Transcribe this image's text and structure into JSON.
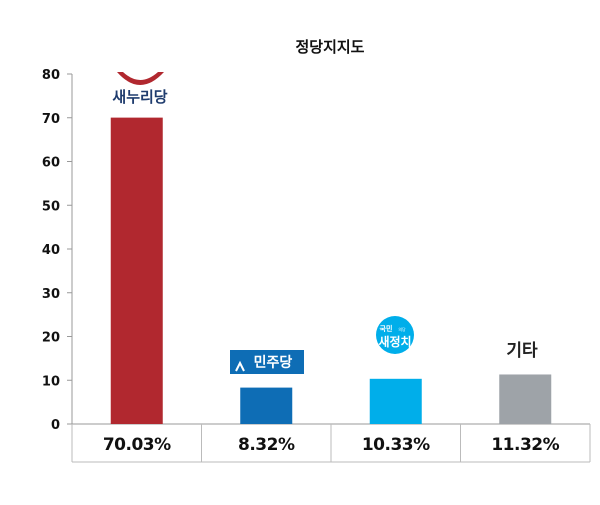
{
  "chart_data": {
    "type": "bar",
    "title": "정당지지도",
    "categories": [
      "새누리당",
      "민주당",
      "국민의당",
      "기타"
    ],
    "values": [
      70.03,
      8.32,
      10.33,
      11.32
    ],
    "value_labels": [
      "70.03%",
      "8.32%",
      "10.33%",
      "11.32%"
    ],
    "ylim": [
      0,
      80
    ],
    "yticks": [
      0,
      10,
      20,
      30,
      40,
      50,
      60,
      70,
      80
    ],
    "colors": [
      "#b1282f",
      "#0e6db5",
      "#00aeea",
      "#9ea3a8"
    ],
    "grid": false,
    "legend": "none"
  },
  "logos": {
    "saenuri": "새누리당",
    "minju": "민주당",
    "kookmin_small": "국민",
    "kookmin_tiny": "의당",
    "kookmin_main": "새정치",
    "other": "기타"
  },
  "icons": {
    "saenuri": "smile-arc-icon",
    "minju": "caret-up-icon",
    "kookmin": "circle-badge-icon"
  }
}
